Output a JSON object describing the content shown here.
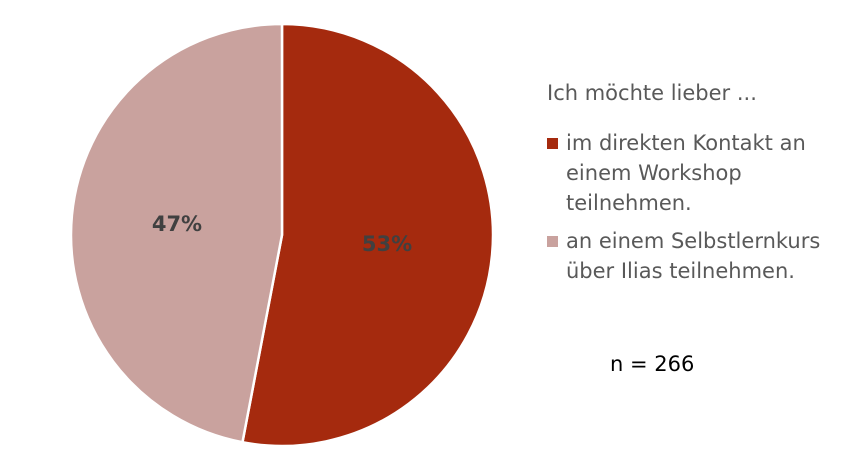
{
  "chart_data": {
    "type": "pie",
    "legend_title": "Ich möchte lieber ...",
    "categories": [
      "im direkten Kontakt an einem Workshop teilnehmen.",
      "an einem Selbstlernkurs über Ilias teilnehmen."
    ],
    "values": [
      53,
      47
    ],
    "value_labels": [
      "53%",
      "47%"
    ],
    "colors": [
      "#a52a0e",
      "#c9a29e"
    ],
    "annotation": "n = 266",
    "legend": "right"
  }
}
